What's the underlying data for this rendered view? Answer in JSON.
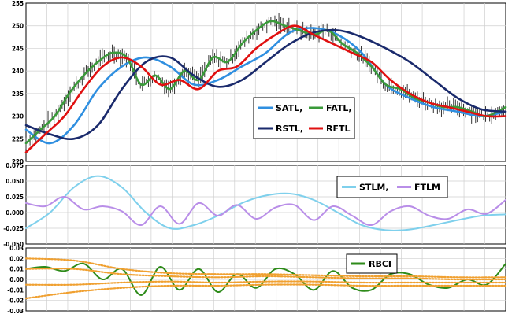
{
  "chart_data": [
    {
      "type": "line",
      "title": "",
      "ylim": [
        220,
        255
      ],
      "yticks": [
        "220",
        "225",
        "230",
        "235",
        "240",
        "245",
        "250",
        "255"
      ],
      "grid": true,
      "legend": {
        "position": "bottom-right",
        "entries": [
          {
            "name": "SATL,",
            "color": "#2f8fe0"
          },
          {
            "name": "FATL,",
            "color": "#3a9a3a"
          },
          {
            "name": "RSTL,",
            "color": "#1a2a6c"
          },
          {
            "name": "RFTL",
            "color": "#e01010"
          }
        ]
      },
      "price_color": "#333333",
      "series": [
        {
          "name": "SATL,",
          "color": "#2f8fe0",
          "x": [
            0,
            0.05,
            0.1,
            0.15,
            0.2,
            0.25,
            0.3,
            0.35,
            0.4,
            0.45,
            0.5,
            0.55,
            0.6,
            0.65,
            0.7,
            0.75,
            0.8,
            0.85,
            0.9,
            0.95,
            1
          ],
          "values": [
            227,
            224,
            228,
            236,
            241,
            243,
            241,
            237,
            238,
            241,
            244,
            248.5,
            249.5,
            248,
            244,
            237,
            234,
            232,
            231,
            230,
            231
          ]
        },
        {
          "name": "FATL,",
          "color": "#3a9a3a",
          "x": [
            0,
            0.03,
            0.06,
            0.09,
            0.12,
            0.15,
            0.18,
            0.21,
            0.24,
            0.27,
            0.3,
            0.33,
            0.36,
            0.39,
            0.42,
            0.45,
            0.48,
            0.51,
            0.54,
            0.57,
            0.6,
            0.63,
            0.66,
            0.69,
            0.72,
            0.75,
            0.78,
            0.81,
            0.84,
            0.87,
            0.9,
            0.93,
            0.96,
            1
          ],
          "values": [
            224,
            227,
            230,
            235,
            239,
            242,
            244,
            243,
            237,
            239,
            236,
            240,
            238,
            243,
            242,
            246,
            249,
            251,
            250,
            249,
            248,
            249,
            246,
            244,
            241,
            237,
            236,
            234,
            233,
            232,
            232,
            231,
            230,
            232
          ]
        },
        {
          "name": "RSTL,",
          "color": "#1a2a6c",
          "x": [
            0,
            0.05,
            0.1,
            0.15,
            0.2,
            0.25,
            0.3,
            0.35,
            0.4,
            0.45,
            0.5,
            0.55,
            0.6,
            0.65,
            0.7,
            0.75,
            0.8,
            0.85,
            0.9,
            0.95,
            1
          ],
          "values": [
            228,
            226,
            225,
            228,
            236,
            242,
            243,
            239,
            236.5,
            238,
            242,
            246,
            248.5,
            249,
            247.5,
            245,
            242,
            238,
            234,
            231.5,
            231
          ]
        },
        {
          "name": "RFTL",
          "color": "#e01010",
          "x": [
            0,
            0.04,
            0.08,
            0.12,
            0.16,
            0.2,
            0.24,
            0.28,
            0.32,
            0.36,
            0.4,
            0.44,
            0.48,
            0.52,
            0.56,
            0.6,
            0.64,
            0.68,
            0.72,
            0.76,
            0.8,
            0.84,
            0.88,
            0.92,
            0.96,
            1
          ],
          "values": [
            222,
            226,
            230,
            236,
            241,
            243,
            241,
            237,
            238,
            236,
            240,
            241,
            245,
            248,
            250,
            248,
            246,
            244,
            242,
            238,
            235,
            233,
            232,
            231,
            230,
            230
          ]
        }
      ]
    },
    {
      "type": "line",
      "ylim": [
        -0.05,
        0.075
      ],
      "yticks": [
        "-0.050",
        "-0.025",
        "0.000",
        "0.025",
        "0.050",
        "0.075"
      ],
      "grid": true,
      "legend": {
        "position": "top-right",
        "entries": [
          {
            "name": "STLM,",
            "color": "#7fd0ec"
          },
          {
            "name": "FTLM",
            "color": "#b98ee8"
          }
        ]
      },
      "series": [
        {
          "name": "STLM,",
          "color": "#7fd0ec",
          "x": [
            0,
            0.05,
            0.1,
            0.15,
            0.2,
            0.25,
            0.3,
            0.35,
            0.4,
            0.45,
            0.5,
            0.55,
            0.6,
            0.65,
            0.7,
            0.75,
            0.8,
            0.85,
            0.9,
            0.95,
            1
          ],
          "values": [
            -0.025,
            0.0,
            0.04,
            0.058,
            0.04,
            0.0,
            -0.025,
            -0.02,
            -0.005,
            0.015,
            0.027,
            0.03,
            0.02,
            0.0,
            -0.02,
            -0.028,
            -0.027,
            -0.02,
            -0.012,
            -0.005,
            -0.003
          ]
        },
        {
          "name": "FTLM",
          "color": "#b98ee8",
          "x": [
            0,
            0.04,
            0.08,
            0.12,
            0.16,
            0.2,
            0.24,
            0.28,
            0.32,
            0.36,
            0.4,
            0.44,
            0.48,
            0.52,
            0.56,
            0.6,
            0.64,
            0.68,
            0.72,
            0.76,
            0.8,
            0.84,
            0.88,
            0.92,
            0.96,
            1
          ],
          "values": [
            0.015,
            0.01,
            0.025,
            0.005,
            0.01,
            0.002,
            -0.02,
            0.01,
            -0.018,
            0.015,
            -0.005,
            0.012,
            -0.01,
            0.008,
            0.012,
            -0.012,
            0.01,
            -0.005,
            -0.02,
            0.002,
            0.01,
            -0.005,
            -0.01,
            0.005,
            -0.002,
            0.02
          ]
        }
      ]
    },
    {
      "type": "line",
      "ylim": [
        -0.03,
        0.03
      ],
      "yticks": [
        "-0.03",
        "-0.02",
        "-0.01",
        "0.00",
        "0.01",
        "0.02",
        "0.03"
      ],
      "grid": true,
      "legend": {
        "position": "top-right",
        "entries": [
          {
            "name": "RBCI",
            "color": "#2e8b1a"
          }
        ]
      },
      "series": [
        {
          "name": "RBCI",
          "color": "#2e8b1a",
          "x": [
            0,
            0.04,
            0.08,
            0.12,
            0.16,
            0.2,
            0.24,
            0.28,
            0.32,
            0.36,
            0.4,
            0.44,
            0.48,
            0.52,
            0.56,
            0.6,
            0.64,
            0.68,
            0.72,
            0.76,
            0.8,
            0.84,
            0.88,
            0.92,
            0.96,
            1
          ],
          "values": [
            0.01,
            0.012,
            0.008,
            0.015,
            0.0,
            0.01,
            -0.015,
            0.012,
            -0.01,
            0.01,
            -0.012,
            0.005,
            -0.008,
            0.01,
            0.005,
            -0.01,
            0.008,
            -0.008,
            -0.01,
            0.005,
            0.005,
            -0.005,
            -0.008,
            0.0,
            -0.005,
            0.015
          ]
        },
        {
          "name": "",
          "color": "#f0a030",
          "x": [
            0,
            0.1,
            0.2,
            0.3,
            0.4,
            0.5,
            0.6,
            0.7,
            0.8,
            0.9,
            1
          ],
          "values": [
            0.02,
            0.018,
            0.01,
            0.006,
            0.005,
            0.005,
            0.004,
            0.003,
            0.003,
            0.002,
            0.002
          ]
        },
        {
          "name": "",
          "color": "#f0a030",
          "x": [
            0,
            0.1,
            0.2,
            0.3,
            0.4,
            0.5,
            0.6,
            0.7,
            0.8,
            0.9,
            1
          ],
          "values": [
            0.01,
            0.01,
            0.005,
            0.003,
            0.002,
            0.003,
            0.002,
            0.001,
            0.001,
            0.0,
            0.0
          ]
        },
        {
          "name": "",
          "color": "#f0a030",
          "x": [
            0,
            0.1,
            0.2,
            0.3,
            0.4,
            0.5,
            0.6,
            0.7,
            0.8,
            0.9,
            1
          ],
          "values": [
            -0.005,
            -0.005,
            -0.003,
            -0.002,
            -0.003,
            -0.002,
            -0.002,
            -0.003,
            -0.003,
            -0.003,
            -0.003
          ]
        },
        {
          "name": "",
          "color": "#f0a030",
          "x": [
            0,
            0.1,
            0.2,
            0.3,
            0.4,
            0.5,
            0.6,
            0.7,
            0.8,
            0.9,
            1
          ],
          "values": [
            -0.018,
            -0.012,
            -0.008,
            -0.006,
            -0.006,
            -0.005,
            -0.005,
            -0.006,
            -0.006,
            -0.006,
            -0.006
          ]
        }
      ]
    }
  ]
}
